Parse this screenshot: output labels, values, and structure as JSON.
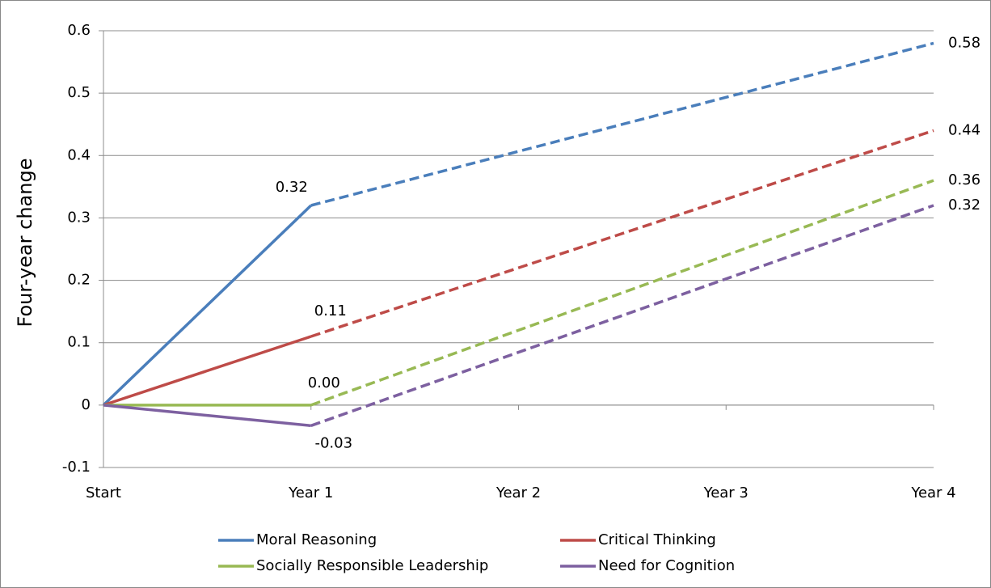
{
  "chart_data": {
    "type": "line",
    "y_label": "Four-year change",
    "x": [
      0,
      1,
      4
    ],
    "xlim": [
      0,
      4
    ],
    "xticks": [
      {
        "value": 0,
        "label": "Start"
      },
      {
        "value": 1,
        "label": "Year 1"
      },
      {
        "value": 2,
        "label": "Year 2"
      },
      {
        "value": 3,
        "label": "Year 3"
      },
      {
        "value": 4,
        "label": "Year 4"
      }
    ],
    "ylim": [
      -0.1,
      0.6
    ],
    "yticks": [
      -0.1,
      0,
      0.1,
      0.2,
      0.3,
      0.4,
      0.5,
      0.6
    ],
    "grid": true,
    "legend": "bottom",
    "series": [
      {
        "name": "Moral Reasoning",
        "color": "#4a7ebb",
        "values": [
          0,
          0.32,
          0.58
        ],
        "value_labels": [
          null,
          "0.32",
          "0.58"
        ]
      },
      {
        "name": "Critical Thinking",
        "color": "#be4b48",
        "values": [
          0,
          0.11,
          0.44
        ],
        "value_labels": [
          null,
          "0.11",
          "0.44"
        ]
      },
      {
        "name": "Socially Responsible Leadership",
        "color": "#98b954",
        "values": [
          0,
          0,
          0.36
        ],
        "value_labels": [
          null,
          "0.00",
          "0.36"
        ]
      },
      {
        "name": "Need for Cognition",
        "color": "#7d60a0",
        "values": [
          0,
          -0.033,
          0.32
        ],
        "value_labels": [
          null,
          "-0.03",
          "0.32"
        ]
      }
    ]
  }
}
